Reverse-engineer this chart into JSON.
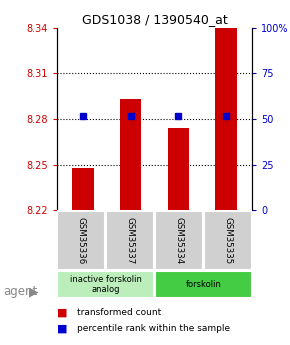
{
  "title": "GDS1038 / 1390540_at",
  "samples": [
    "GSM35336",
    "GSM35337",
    "GSM35334",
    "GSM35335"
  ],
  "bar_values": [
    8.248,
    8.293,
    8.274,
    8.34
  ],
  "percentile_values": [
    8.282,
    8.282,
    8.282,
    8.282
  ],
  "bar_color": "#cc0000",
  "percentile_color": "#0000cc",
  "ylim_left": [
    8.22,
    8.34
  ],
  "ylim_right": [
    0,
    100
  ],
  "yticks_left": [
    8.22,
    8.25,
    8.28,
    8.31,
    8.34
  ],
  "yticks_right": [
    0,
    25,
    50,
    75,
    100
  ],
  "ytick_labels_left": [
    "8.22",
    "8.25",
    "8.28",
    "8.31",
    "8.34"
  ],
  "ytick_labels_right": [
    "0",
    "25",
    "50",
    "75",
    "100%"
  ],
  "gridlines_at": [
    8.25,
    8.28,
    8.31
  ],
  "groups": [
    {
      "label": "inactive forskolin\nanalog",
      "spans": [
        0,
        2
      ],
      "color": "#bbeebb"
    },
    {
      "label": "forskolin",
      "spans": [
        2,
        4
      ],
      "color": "#44cc44"
    }
  ],
  "agent_label": "agent",
  "legend_items": [
    {
      "color": "#cc0000",
      "label": "transformed count"
    },
    {
      "color": "#0000cc",
      "label": "percentile rank within the sample"
    }
  ],
  "bar_width": 0.45,
  "base_value": 8.22
}
